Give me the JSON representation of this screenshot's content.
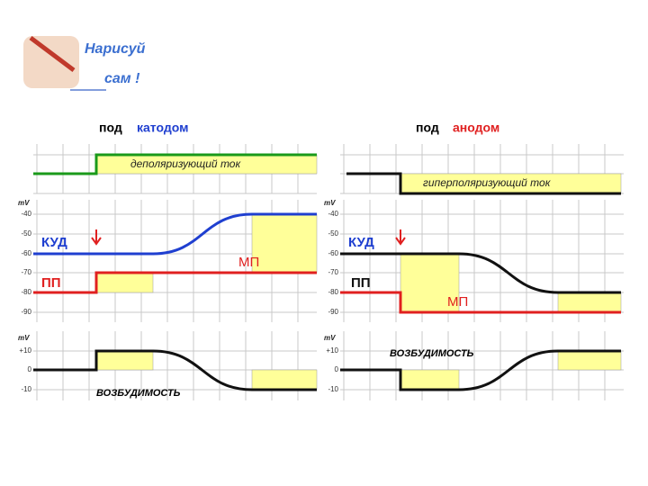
{
  "logo": {
    "line1": "Нарисуй",
    "line2": "сам !"
  },
  "panels": [
    {
      "prefix": "под",
      "title": "катодом",
      "current_label": "деполяризующий ток",
      "mid_unit": "mV",
      "mid_ticks": [
        "-40",
        "-50",
        "-60",
        "-70",
        "-80",
        "-90"
      ],
      "kud": "КУД",
      "pp": "ПП",
      "mp": "МП",
      "low_unit": "mV",
      "low_ticks": [
        "+10",
        "0",
        "-10"
      ],
      "excitability": "ВОЗБУДИМОСТЬ"
    },
    {
      "prefix": "под",
      "title": "анодом",
      "current_label": "гиперполяризующий ток",
      "mid_unit": "mV",
      "mid_ticks": [
        "-40",
        "-50",
        "-60",
        "-70",
        "-80",
        "-90"
      ],
      "kud": "КУД",
      "pp": "ПП",
      "mp": "МП",
      "low_unit": "mV",
      "low_ticks": [
        "+10",
        "0",
        "-10"
      ],
      "excitability": "ВОЗБУДИМОСТЬ"
    }
  ]
}
